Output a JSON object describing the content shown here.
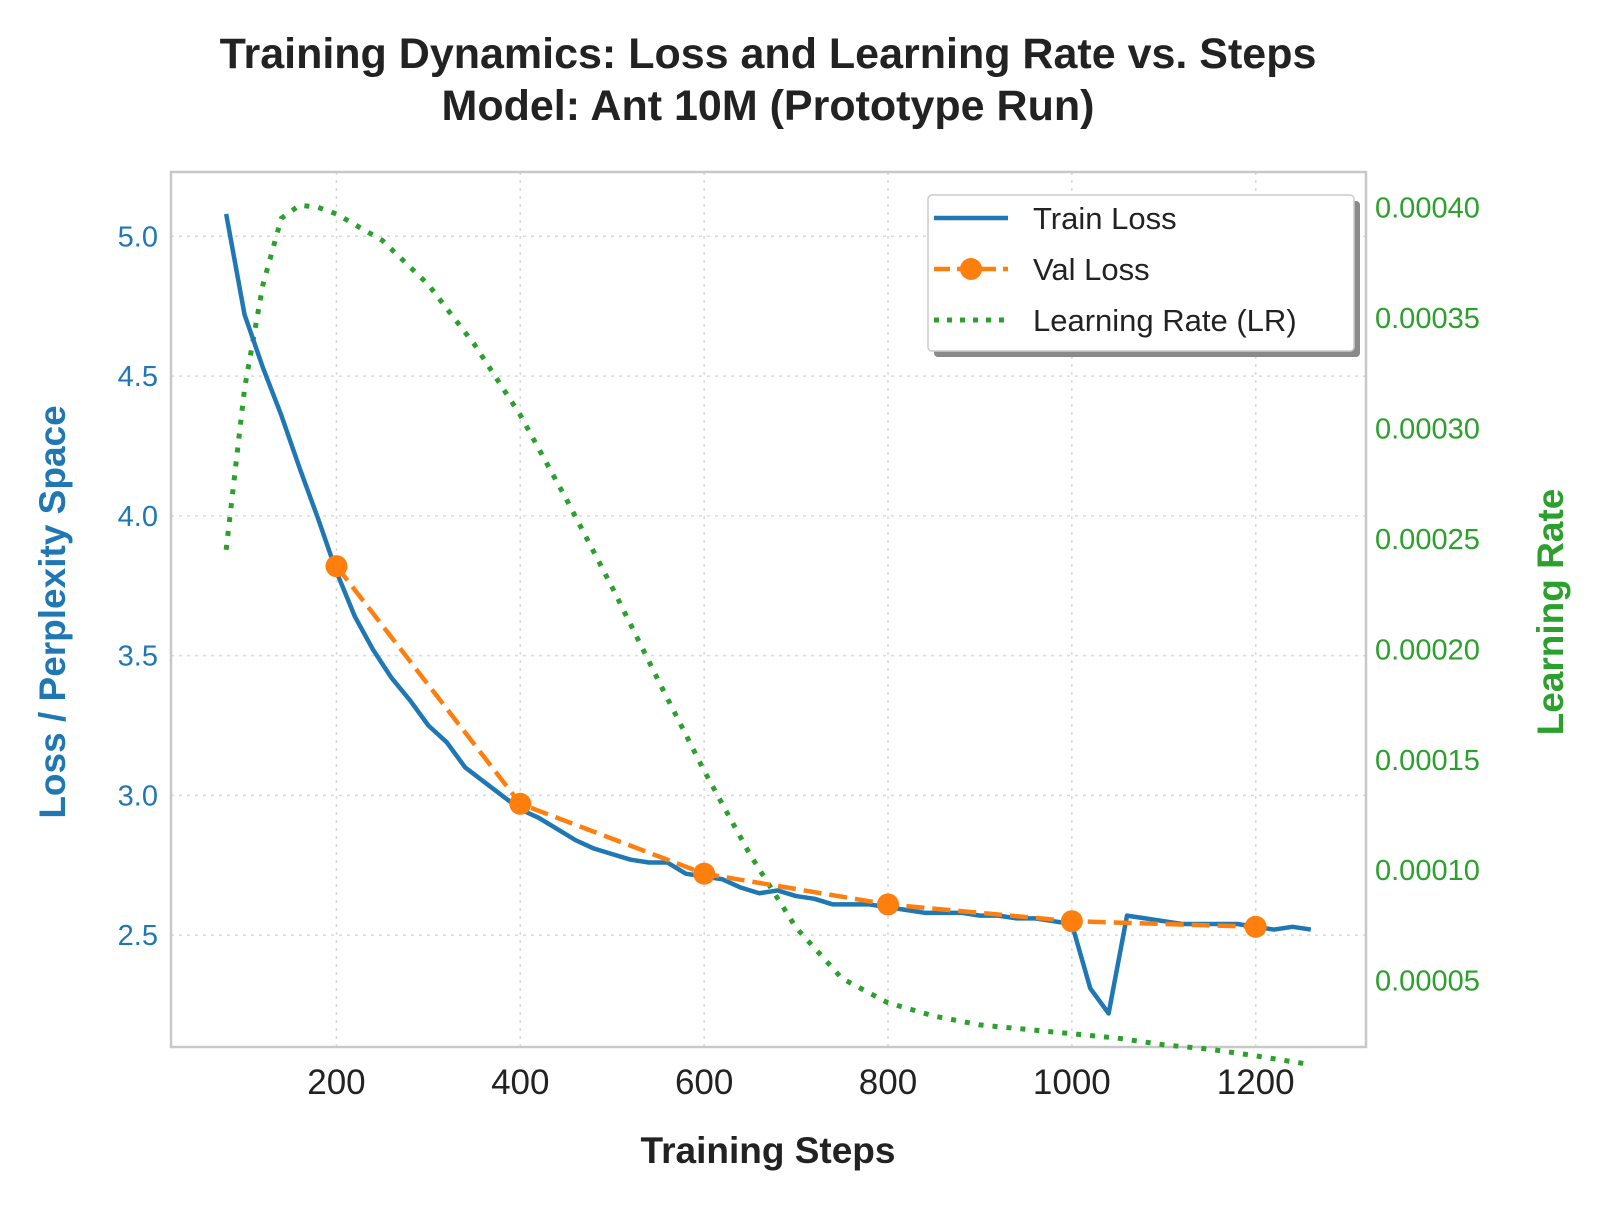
{
  "chart_data": {
    "type": "line",
    "title": "Training Dynamics: Loss and Learning Rate vs. Steps",
    "subtitle": "Model: Ant 10M (Prototype Run)",
    "xlabel": "Training Steps",
    "ylabel_left": "Loss / Perplexity Space",
    "ylabel_right": "Learning Rate",
    "xlim": [
      20,
      1320
    ],
    "ylim_left": [
      2.1,
      5.23
    ],
    "ylim_right": [
      2e-05,
      0.000416
    ],
    "x_ticks": [
      200,
      400,
      600,
      800,
      1000,
      1200
    ],
    "y_ticks_left": [
      "2.5",
      "3.0",
      "3.5",
      "4.0",
      "4.5",
      "5.0"
    ],
    "y_ticks_right": [
      "0.00005",
      "0.00010",
      "0.00015",
      "0.00020",
      "0.00025",
      "0.00030",
      "0.00035",
      "0.00040"
    ],
    "grid": true,
    "legend_position": "top-right",
    "colors": {
      "train": "#1f77b4",
      "val": "#ff7f0e",
      "lr": "#2ca02c"
    },
    "series": [
      {
        "name": "Train Loss",
        "axis": "left",
        "style": "solid",
        "x": [
          80,
          100,
          120,
          140,
          160,
          180,
          200,
          220,
          240,
          260,
          280,
          300,
          320,
          340,
          360,
          380,
          400,
          420,
          440,
          460,
          480,
          500,
          520,
          540,
          560,
          580,
          600,
          620,
          640,
          660,
          680,
          700,
          720,
          740,
          760,
          780,
          800,
          820,
          840,
          860,
          880,
          900,
          920,
          940,
          960,
          980,
          1000,
          1020,
          1040,
          1060,
          1080,
          1100,
          1120,
          1140,
          1160,
          1180,
          1200,
          1220,
          1240,
          1260
        ],
        "y": [
          5.08,
          4.72,
          4.53,
          4.36,
          4.17,
          3.99,
          3.8,
          3.64,
          3.52,
          3.42,
          3.34,
          3.25,
          3.19,
          3.1,
          3.05,
          3.0,
          2.95,
          2.92,
          2.88,
          2.84,
          2.81,
          2.79,
          2.77,
          2.76,
          2.76,
          2.72,
          2.71,
          2.7,
          2.67,
          2.65,
          2.66,
          2.64,
          2.63,
          2.61,
          2.61,
          2.61,
          2.6,
          2.59,
          2.58,
          2.58,
          2.58,
          2.57,
          2.57,
          2.56,
          2.56,
          2.55,
          2.54,
          2.31,
          2.22,
          2.57,
          2.56,
          2.55,
          2.54,
          2.54,
          2.54,
          2.54,
          2.53,
          2.52,
          2.53,
          2.52
        ]
      },
      {
        "name": "Val Loss",
        "axis": "left",
        "style": "dashed-markers",
        "x": [
          200,
          400,
          600,
          800,
          1000,
          1200
        ],
        "y": [
          3.82,
          2.97,
          2.72,
          2.61,
          2.55,
          2.53
        ]
      },
      {
        "name": "Learning Rate (LR)",
        "axis": "right",
        "style": "dotted",
        "x": [
          80,
          100,
          120,
          140,
          160,
          180,
          200,
          250,
          300,
          350,
          400,
          450,
          500,
          550,
          600,
          650,
          700,
          750,
          800,
          850,
          900,
          950,
          1000,
          1050,
          1100,
          1150,
          1200,
          1260
        ],
        "y": [
          0.000245,
          0.000318,
          0.000365,
          0.000395,
          0.000401,
          0.0004,
          0.000397,
          0.000385,
          0.000365,
          0.000338,
          0.000306,
          0.000268,
          0.000228,
          0.000186,
          0.000145,
          0.000107,
          7.4e-05,
          5.1e-05,
          4e-05,
          3.4e-05,
          3e-05,
          2.8e-05,
          2.6e-05,
          2.4e-05,
          2.1e-05,
          1.9e-05,
          1.6e-05,
          1.2e-05
        ]
      }
    ]
  }
}
